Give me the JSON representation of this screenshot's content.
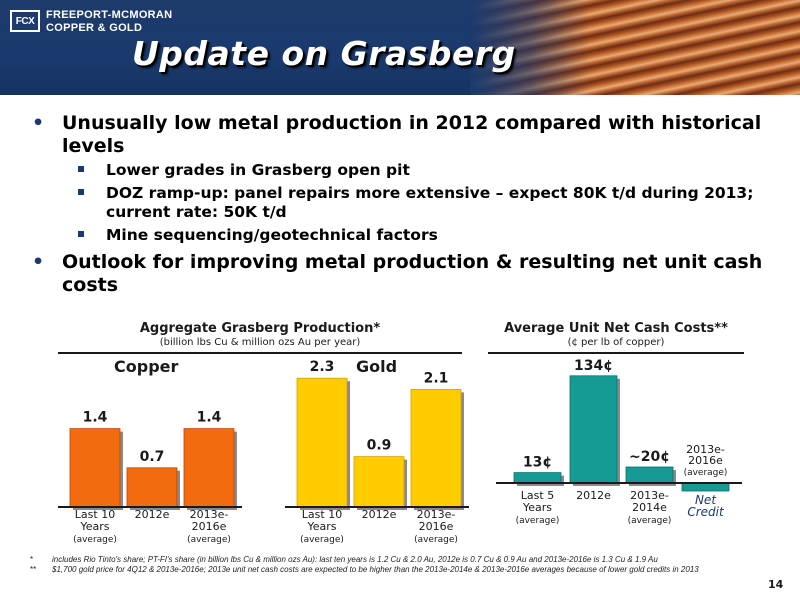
{
  "header": {
    "logo_mark": "FCX",
    "company_line1": "Freeport-McMoRan",
    "company_line2": "Copper & Gold",
    "title": "Update on Grasberg"
  },
  "bullets": [
    {
      "text": "Unusually low metal production in 2012 compared with historical levels",
      "sub": [
        "Lower grades in Grasberg open pit",
        "DOZ ramp-up: panel repairs more extensive – expect 80K t/d during 2013; current rate: 50K t/d",
        "Mine sequencing/geotechnical factors"
      ]
    },
    {
      "text": "Outlook for improving metal production & resulting net unit cash costs",
      "sub": []
    }
  ],
  "production": {
    "title": "Aggregate Grasberg Production*",
    "subtitle": "(billion lbs Cu & million ozs Au per year)"
  },
  "costs": {
    "title": "Average Unit Net Cash Costs**",
    "subtitle": "(¢ per lb of copper)"
  },
  "chart_data": [
    {
      "type": "bar",
      "title": "Copper",
      "categories": [
        "Last 10 Years (average)",
        "2012e",
        "2013e-2016e (average)"
      ],
      "category_lines": [
        [
          "Last 10",
          "Years",
          "(average)"
        ],
        [
          "2012e"
        ],
        [
          "2013e-",
          "2016e",
          "(average)"
        ]
      ],
      "values": [
        1.4,
        0.7,
        1.4
      ],
      "value_labels": [
        "1.4",
        "0.7",
        "1.4"
      ],
      "color": "#f26b0f",
      "ylim": [
        0,
        2.6
      ]
    },
    {
      "type": "bar",
      "title": "Gold",
      "categories": [
        "Last 10 Years (average)",
        "2012e",
        "2013e-2016e (average)"
      ],
      "category_lines": [
        [
          "Last 10",
          "Years",
          "(average)"
        ],
        [
          "2012e"
        ],
        [
          "2013e-",
          "2016e",
          "(average)"
        ]
      ],
      "values": [
        2.3,
        0.9,
        2.1
      ],
      "value_labels": [
        "2.3",
        "0.9",
        "2.1"
      ],
      "color": "#ffcc00",
      "ylim": [
        0,
        2.6
      ]
    },
    {
      "type": "bar",
      "title": "",
      "categories": [
        "Last 5 Years (average)",
        "2012e",
        "2013e-2014e (average)",
        "2013e-2016e (average)"
      ],
      "category_lines": [
        [
          "Last 5",
          "Years",
          "(average)"
        ],
        [
          "2012e"
        ],
        [
          "2013e-",
          "2014e",
          "(average)"
        ],
        [
          "Net",
          "Credit"
        ]
      ],
      "top_labels": [
        "",
        "",
        "",
        "2013e- 2016e (average)"
      ],
      "values": [
        13,
        134,
        20,
        -10
      ],
      "value_labels": [
        "13¢",
        "134¢",
        "~20¢",
        ""
      ],
      "color": "#169a94",
      "ylim": [
        -20,
        150
      ]
    }
  ],
  "footnotes": [
    {
      "marker": "*",
      "text": "includes Rio Tinto's share; PT-FI's share (in billion lbs Cu & million ozs Au): last ten years is 1.2 Cu & 2.0 Au, 2012e is 0.7 Cu & 0.9 Au and 2013e-2016e is 1.3 Cu & 1.9 Au"
    },
    {
      "marker": "**",
      "text": "$1,700 gold price for 4Q12 & 2013e-2016e; 2013e unit net cash costs are expected to be higher than the 2013e-2014e & 2013e-2016e averages because of lower gold credits in 2013"
    }
  ],
  "page_number": "14"
}
